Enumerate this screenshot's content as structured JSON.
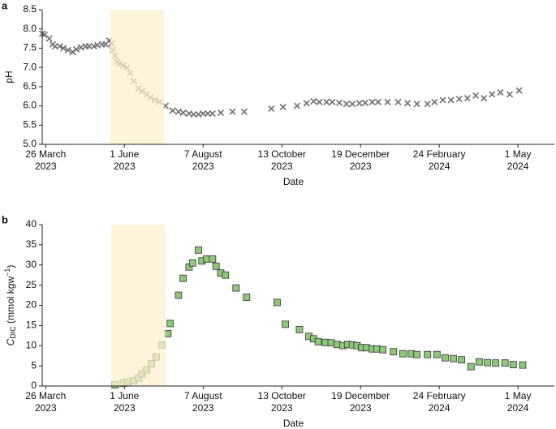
{
  "chart_data": [
    {
      "panel_label": "a",
      "type": "scatter",
      "marker": "x",
      "color": "#6e6e6e",
      "x_label": "Date",
      "y_label": "pH",
      "xlim": [
        "2023-03-23",
        "2024-06-01"
      ],
      "xticks": [
        {
          "value": "2023-03-26",
          "label": "26 March\n2023"
        },
        {
          "value": "2023-06-01",
          "label": "1 June\n2023"
        },
        {
          "value": "2023-08-07",
          "label": "7 August\n2023"
        },
        {
          "value": "2023-10-13",
          "label": "13 October\n2023"
        },
        {
          "value": "2023-12-19",
          "label": "19 December\n2023"
        },
        {
          "value": "2024-02-24",
          "label": "24 February\n2024"
        },
        {
          "value": "2024-05-01",
          "label": "1 May\n2024"
        }
      ],
      "ylim": [
        5,
        8.5
      ],
      "yticks": [
        {
          "value": 5,
          "label": "5.0"
        },
        5.5,
        {
          "value": 6,
          "label": "6.0"
        },
        6.5,
        {
          "value": 7,
          "label": "7.0"
        },
        7.5,
        {
          "value": 8,
          "label": "8.0"
        },
        8.5
      ],
      "shade": [
        "2023-05-20",
        "2023-07-05"
      ],
      "shade_color": "#fdf0cf",
      "x": [
        "2023-03-23",
        "2023-03-25",
        "2023-03-29",
        "2023-04-01",
        "2023-04-03",
        "2023-04-07",
        "2023-04-10",
        "2023-04-14",
        "2023-04-18",
        "2023-04-21",
        "2023-04-25",
        "2023-04-29",
        "2023-05-02",
        "2023-05-06",
        "2023-05-09",
        "2023-05-13",
        "2023-05-16",
        "2023-05-19",
        "2023-05-21",
        "2023-05-22",
        "2023-05-24",
        "2023-05-26",
        "2023-05-28",
        "2023-05-31",
        "2023-06-03",
        "2023-06-06",
        "2023-06-09",
        "2023-06-13",
        "2023-06-16",
        "2023-06-20",
        "2023-06-23",
        "2023-06-27",
        "2023-07-01",
        "2023-07-06",
        "2023-07-12",
        "2023-07-17",
        "2023-07-21",
        "2023-07-26",
        "2023-07-30",
        "2023-08-03",
        "2023-08-07",
        "2023-08-11",
        "2023-08-15",
        "2023-08-22",
        "2023-09-01",
        "2023-09-11",
        "2023-10-04",
        "2023-10-14",
        "2023-10-26",
        "2023-11-03",
        "2023-11-09",
        "2023-11-14",
        "2023-11-20",
        "2023-11-25",
        "2023-12-01",
        "2023-12-07",
        "2023-12-12",
        "2023-12-18",
        "2023-12-23",
        "2023-12-29",
        "2024-01-03",
        "2024-01-11",
        "2024-01-20",
        "2024-01-28",
        "2024-02-05",
        "2024-02-14",
        "2024-02-20",
        "2024-02-27",
        "2024-03-05",
        "2024-03-12",
        "2024-03-19",
        "2024-03-26",
        "2024-04-02",
        "2024-04-09",
        "2024-04-16",
        "2024-04-24",
        "2024-05-02"
      ],
      "values": [
        7.88,
        7.85,
        7.75,
        7.6,
        7.55,
        7.55,
        7.5,
        7.45,
        7.4,
        7.47,
        7.52,
        7.55,
        7.55,
        7.55,
        7.58,
        7.6,
        7.6,
        7.7,
        7.62,
        7.45,
        7.3,
        7.15,
        7.1,
        7.05,
        7.0,
        6.85,
        6.65,
        6.45,
        6.38,
        6.3,
        6.22,
        6.15,
        6.1,
        6.0,
        5.88,
        5.85,
        5.82,
        5.8,
        5.78,
        5.78,
        5.8,
        5.8,
        5.8,
        5.82,
        5.85,
        5.85,
        5.93,
        5.97,
        6.0,
        6.07,
        6.12,
        6.1,
        6.1,
        6.1,
        6.08,
        6.05,
        6.05,
        6.07,
        6.08,
        6.1,
        6.1,
        6.1,
        6.1,
        6.07,
        6.05,
        6.05,
        6.1,
        6.15,
        6.15,
        6.18,
        6.2,
        6.27,
        6.2,
        6.3,
        6.35,
        6.3,
        6.4
      ]
    },
    {
      "panel_label": "b",
      "type": "scatter",
      "marker": "square",
      "color": "#8fc87a",
      "x_label": "Date",
      "y_label": [
        "C",
        "DIC",
        " (mmol kgw",
        "−1",
        ")"
      ],
      "xlim": [
        "2023-03-23",
        "2024-06-01"
      ],
      "xticks": [
        {
          "value": "2023-03-26",
          "label": "26 March\n2023"
        },
        {
          "value": "2023-06-01",
          "label": "1 June\n2023"
        },
        {
          "value": "2023-08-07",
          "label": "7 August\n2023"
        },
        {
          "value": "2023-10-13",
          "label": "13 October\n2023"
        },
        {
          "value": "2023-12-19",
          "label": "19 December\n2023"
        },
        {
          "value": "2024-02-24",
          "label": "24 February\n2024"
        },
        {
          "value": "2024-05-01",
          "label": "1 May\n2024"
        }
      ],
      "ylim": [
        0,
        40
      ],
      "yticks": [
        0,
        5,
        10,
        15,
        20,
        25,
        30,
        35,
        40
      ],
      "shade": [
        "2023-05-21",
        "2023-07-06"
      ],
      "shade_color": "#fdf0cf",
      "x": [
        "2023-05-24",
        "2023-05-31",
        "2023-06-04",
        "2023-06-09",
        "2023-06-13",
        "2023-06-16",
        "2023-06-20",
        "2023-06-24",
        "2023-06-28",
        "2023-07-03",
        "2023-07-08",
        "2023-07-10",
        "2023-07-17",
        "2023-07-21",
        "2023-07-26",
        "2023-07-29",
        "2023-08-03",
        "2023-08-06",
        "2023-08-10",
        "2023-08-15",
        "2023-08-18",
        "2023-08-22",
        "2023-08-26",
        "2023-09-04",
        "2023-09-13",
        "2023-10-09",
        "2023-10-16",
        "2023-10-28",
        "2023-11-05",
        "2023-11-09",
        "2023-11-13",
        "2023-11-19",
        "2023-11-24",
        "2023-11-29",
        "2023-12-04",
        "2023-12-08",
        "2023-12-12",
        "2023-12-16",
        "2023-12-20",
        "2023-12-24",
        "2023-12-29",
        "2024-01-02",
        "2024-01-07",
        "2024-01-16",
        "2024-01-24",
        "2024-01-31",
        "2024-02-05",
        "2024-02-14",
        "2024-02-22",
        "2024-02-29",
        "2024-03-07",
        "2024-03-14",
        "2024-03-22",
        "2024-03-29",
        "2024-04-05",
        "2024-04-12",
        "2024-04-20",
        "2024-04-27",
        "2024-05-05"
      ],
      "values": [
        0.3,
        0.7,
        1,
        1.3,
        2,
        3,
        4,
        5.5,
        7.2,
        10.2,
        13,
        15.5,
        22.5,
        26.7,
        29.5,
        30.5,
        33.7,
        31,
        31.5,
        31.5,
        29.7,
        28,
        27.5,
        24.3,
        22,
        20.7,
        15.3,
        14,
        12.3,
        11.7,
        11,
        10.8,
        10.7,
        10.3,
        10,
        10.3,
        10.2,
        10,
        9.5,
        9.5,
        9.2,
        9.2,
        9,
        8.5,
        8,
        8,
        7.8,
        7.8,
        7.8,
        7,
        6.8,
        6.5,
        4.8,
        6,
        5.8,
        5.7,
        5.7,
        5.3,
        5.2
      ]
    }
  ]
}
